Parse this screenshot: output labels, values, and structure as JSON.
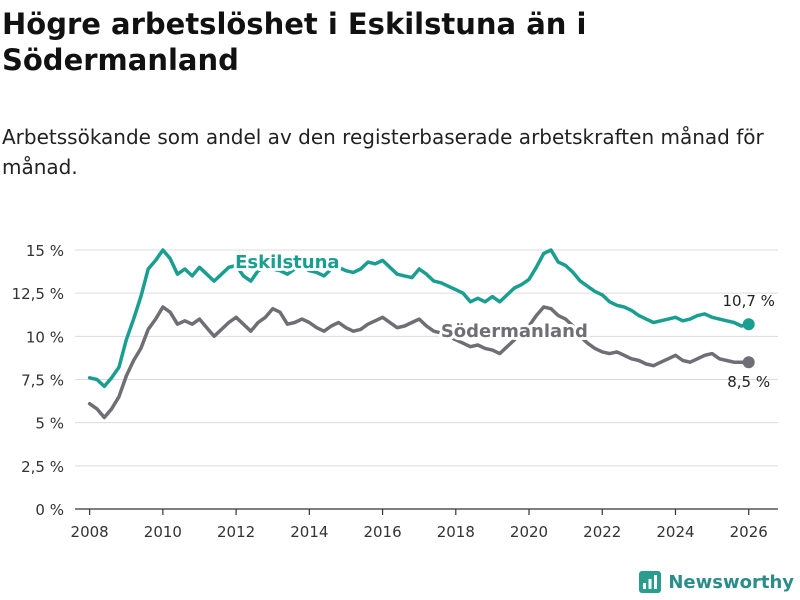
{
  "header": {
    "title": "Högre arbetslöshet i Eskilstuna än i Södermanland",
    "subtitle": "Arbetssökande som andel av den registerbaserade arbetskraften månad för månad."
  },
  "brand": {
    "name": "Newsworthy",
    "color": "#2a9d8f"
  },
  "chart_data": {
    "type": "line",
    "title": "Högre arbetslöshet i Eskilstuna än i Södermanland",
    "xlabel": "",
    "ylabel": "",
    "xlim": [
      2007.6,
      2026.8
    ],
    "ylim": [
      0,
      15
    ],
    "y_ticks": [
      0,
      2.5,
      5,
      7.5,
      10,
      12.5,
      15
    ],
    "y_tick_labels": [
      "0 %",
      "2,5 %",
      "5 %",
      "7,5 %",
      "10 %",
      "12,5 %",
      "15 %"
    ],
    "x_ticks": [
      2008,
      2010,
      2012,
      2014,
      2016,
      2018,
      2020,
      2022,
      2024,
      2026
    ],
    "x_tick_labels": [
      "2008",
      "2010",
      "2012",
      "2014",
      "2016",
      "2018",
      "2020",
      "2022",
      "2024",
      "2026"
    ],
    "grid": true,
    "series": [
      {
        "name": "Eskilstuna",
        "color": "#1a9e8f",
        "end_label": "10,7 %",
        "x": [
          2008.0,
          2008.2,
          2008.4,
          2008.6,
          2008.8,
          2009.0,
          2009.2,
          2009.4,
          2009.6,
          2009.8,
          2010.0,
          2010.2,
          2010.4,
          2010.6,
          2010.8,
          2011.0,
          2011.2,
          2011.4,
          2011.6,
          2011.8,
          2012.0,
          2012.2,
          2012.4,
          2012.6,
          2012.8,
          2013.0,
          2013.2,
          2013.4,
          2013.6,
          2013.8,
          2014.0,
          2014.2,
          2014.4,
          2014.6,
          2014.8,
          2015.0,
          2015.2,
          2015.4,
          2015.6,
          2015.8,
          2016.0,
          2016.2,
          2016.4,
          2016.6,
          2016.8,
          2017.0,
          2017.2,
          2017.4,
          2017.6,
          2017.8,
          2018.0,
          2018.2,
          2018.4,
          2018.6,
          2018.8,
          2019.0,
          2019.2,
          2019.4,
          2019.6,
          2019.8,
          2020.0,
          2020.2,
          2020.4,
          2020.6,
          2020.8,
          2021.0,
          2021.2,
          2021.4,
          2021.6,
          2021.8,
          2022.0,
          2022.2,
          2022.4,
          2022.6,
          2022.8,
          2023.0,
          2023.2,
          2023.4,
          2023.6,
          2023.8,
          2024.0,
          2024.2,
          2024.4,
          2024.6,
          2024.8,
          2025.0,
          2025.2,
          2025.4,
          2025.6,
          2025.8,
          2026.0
        ],
        "values": [
          7.6,
          7.5,
          7.1,
          7.6,
          8.2,
          9.8,
          11.0,
          12.3,
          13.9,
          14.4,
          15.0,
          14.5,
          13.6,
          13.9,
          13.5,
          14.0,
          13.6,
          13.2,
          13.6,
          14.0,
          14.1,
          13.5,
          13.2,
          13.8,
          14.0,
          13.9,
          13.8,
          13.6,
          13.9,
          14.0,
          13.8,
          13.7,
          13.5,
          13.9,
          14.0,
          13.8,
          13.7,
          13.9,
          14.3,
          14.2,
          14.4,
          14.0,
          13.6,
          13.5,
          13.4,
          13.9,
          13.6,
          13.2,
          13.1,
          12.9,
          12.7,
          12.5,
          12.0,
          12.2,
          12.0,
          12.3,
          12.0,
          12.4,
          12.8,
          13.0,
          13.3,
          14.0,
          14.8,
          15.0,
          14.3,
          14.1,
          13.7,
          13.2,
          12.9,
          12.6,
          12.4,
          12.0,
          11.8,
          11.7,
          11.5,
          11.2,
          11.0,
          10.8,
          10.9,
          11.0,
          11.1,
          10.9,
          11.0,
          11.2,
          11.3,
          11.1,
          11.0,
          10.9,
          10.8,
          10.6,
          10.7
        ]
      },
      {
        "name": "Södermanland",
        "color": "#6e6e74",
        "end_label": "8,5 %",
        "x": [
          2008.0,
          2008.2,
          2008.4,
          2008.6,
          2008.8,
          2009.0,
          2009.2,
          2009.4,
          2009.6,
          2009.8,
          2010.0,
          2010.2,
          2010.4,
          2010.6,
          2010.8,
          2011.0,
          2011.2,
          2011.4,
          2011.6,
          2011.8,
          2012.0,
          2012.2,
          2012.4,
          2012.6,
          2012.8,
          2013.0,
          2013.2,
          2013.4,
          2013.6,
          2013.8,
          2014.0,
          2014.2,
          2014.4,
          2014.6,
          2014.8,
          2015.0,
          2015.2,
          2015.4,
          2015.6,
          2015.8,
          2016.0,
          2016.2,
          2016.4,
          2016.6,
          2016.8,
          2017.0,
          2017.2,
          2017.4,
          2017.6,
          2017.8,
          2018.0,
          2018.2,
          2018.4,
          2018.6,
          2018.8,
          2019.0,
          2019.2,
          2019.4,
          2019.6,
          2019.8,
          2020.0,
          2020.2,
          2020.4,
          2020.6,
          2020.8,
          2021.0,
          2021.2,
          2021.4,
          2021.6,
          2021.8,
          2022.0,
          2022.2,
          2022.4,
          2022.6,
          2022.8,
          2023.0,
          2023.2,
          2023.4,
          2023.6,
          2023.8,
          2024.0,
          2024.2,
          2024.4,
          2024.6,
          2024.8,
          2025.0,
          2025.2,
          2025.4,
          2025.6,
          2025.8,
          2026.0
        ],
        "values": [
          6.1,
          5.8,
          5.3,
          5.8,
          6.5,
          7.7,
          8.6,
          9.3,
          10.4,
          11.0,
          11.7,
          11.4,
          10.7,
          10.9,
          10.7,
          11.0,
          10.5,
          10.0,
          10.4,
          10.8,
          11.1,
          10.7,
          10.3,
          10.8,
          11.1,
          11.6,
          11.4,
          10.7,
          10.8,
          11.0,
          10.8,
          10.5,
          10.3,
          10.6,
          10.8,
          10.5,
          10.3,
          10.4,
          10.7,
          10.9,
          11.1,
          10.8,
          10.5,
          10.6,
          10.8,
          11.0,
          10.6,
          10.3,
          10.2,
          10.0,
          9.8,
          9.6,
          9.4,
          9.5,
          9.3,
          9.2,
          9.0,
          9.4,
          9.8,
          10.2,
          10.6,
          11.2,
          11.7,
          11.6,
          11.2,
          11.0,
          10.6,
          10.0,
          9.6,
          9.3,
          9.1,
          9.0,
          9.1,
          8.9,
          8.7,
          8.6,
          8.4,
          8.3,
          8.5,
          8.7,
          8.9,
          8.6,
          8.5,
          8.7,
          8.9,
          9.0,
          8.7,
          8.6,
          8.5,
          8.5,
          8.5
        ]
      }
    ],
    "annotations": [
      {
        "text": "Eskilstuna",
        "series": "Eskilstuna",
        "at_x": 2013.4,
        "at_y": 14.3
      },
      {
        "text": "Södermanland",
        "series": "Södermanland",
        "at_x": 2019.6,
        "at_y": 10.3
      }
    ]
  }
}
